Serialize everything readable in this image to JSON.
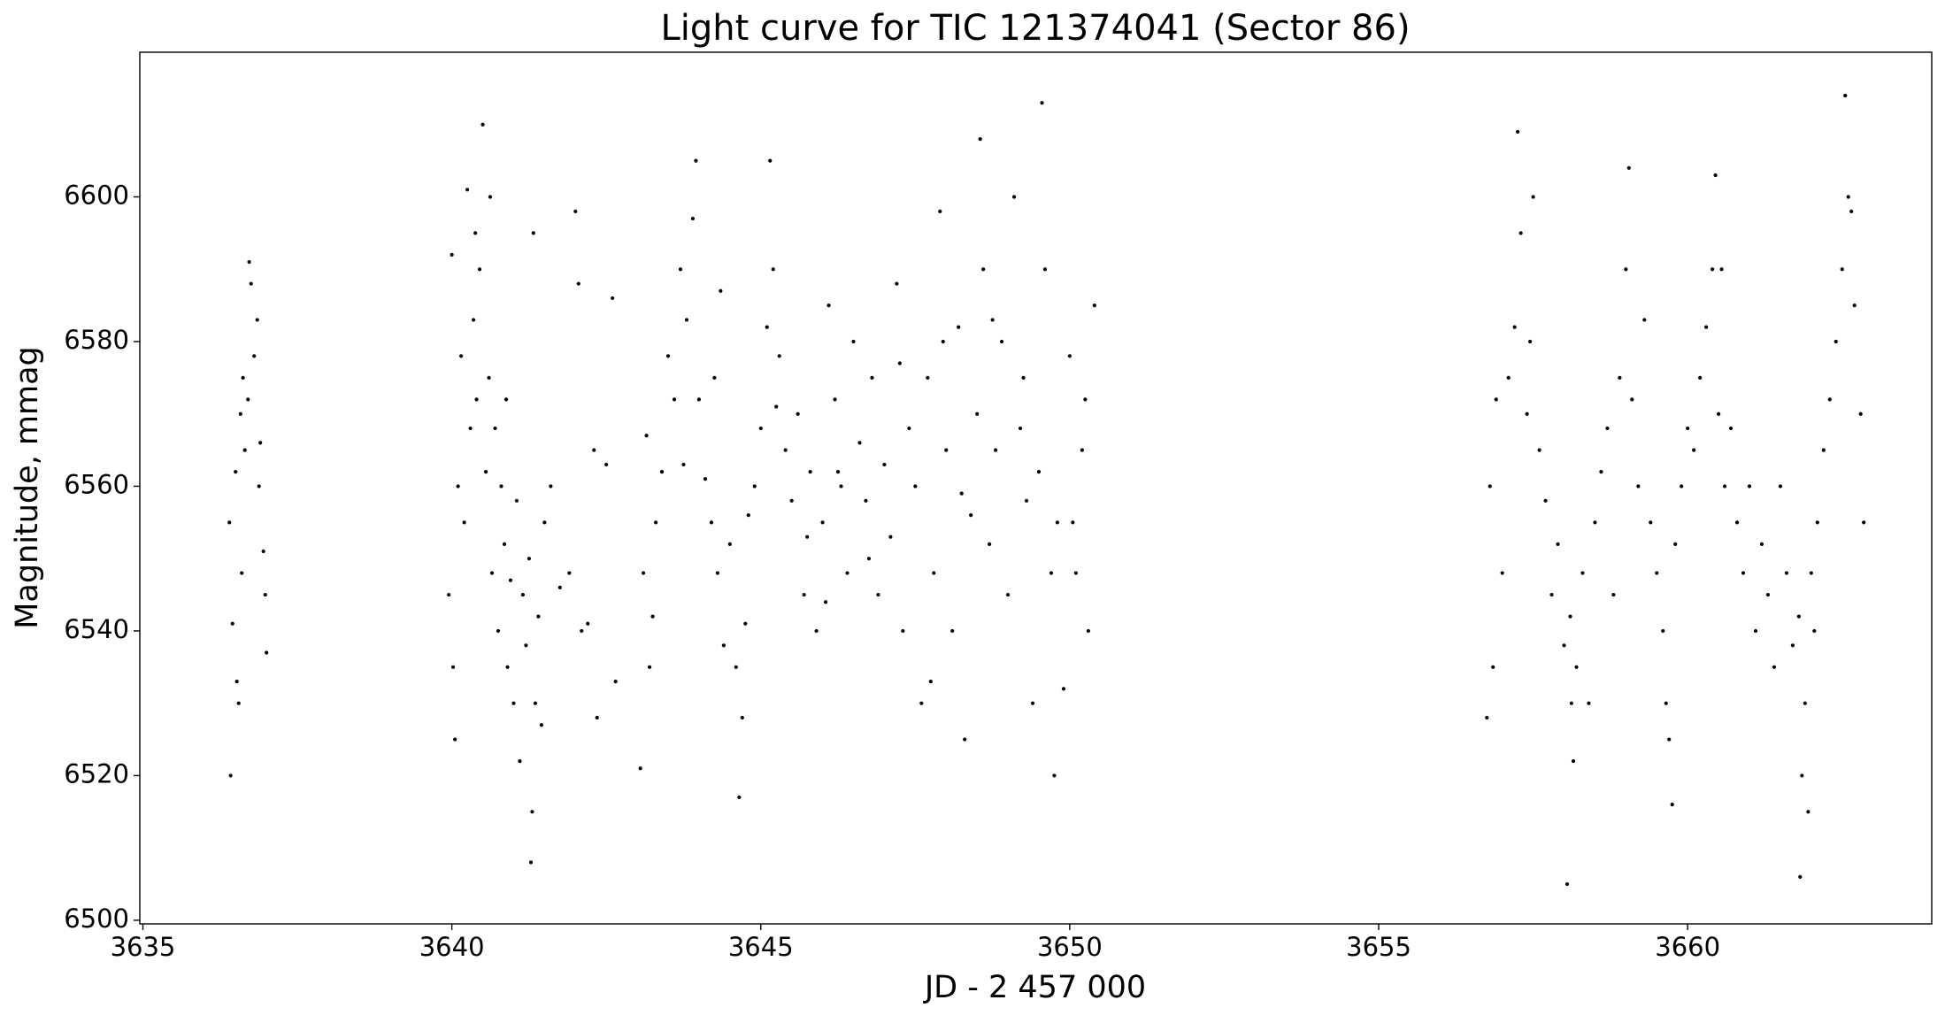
{
  "chart_data": {
    "type": "scatter",
    "title": "Light curve for TIC 121374041 (Sector 86)",
    "x_label": "JD - 2 457 000",
    "y_label": "Magnitude, mmag",
    "color": "#000000",
    "xlim": [
      3634.95,
      3663.95
    ],
    "ylim": [
      6499.5,
      6620
    ],
    "xticks": [
      3635,
      3640,
      3645,
      3650,
      3655,
      3660
    ],
    "yticks": [
      6500,
      6520,
      6540,
      6560,
      6580,
      6600
    ],
    "x": [
      3636.4,
      3636.45,
      3636.5,
      3636.55,
      3636.6,
      3636.65,
      3636.7,
      3636.75,
      3636.8,
      3636.85,
      3636.9,
      3636.95,
      3637.0,
      3636.42,
      3636.58,
      3636.72,
      3636.88,
      3636.98,
      3636.52,
      3636.62,
      3639.95,
      3640.0,
      3640.05,
      3640.1,
      3640.15,
      3640.2,
      3640.25,
      3640.3,
      3640.35,
      3640.4,
      3640.45,
      3640.5,
      3640.55,
      3640.6,
      3640.65,
      3640.7,
      3640.75,
      3640.8,
      3640.85,
      3640.9,
      3640.95,
      3641.0,
      3641.05,
      3641.1,
      3641.15,
      3641.2,
      3641.25,
      3641.3,
      3641.35,
      3641.4,
      3641.45,
      3641.5,
      3640.02,
      3640.38,
      3640.62,
      3641.28,
      3641.32,
      3640.88,
      3641.6,
      3641.75,
      3641.9,
      3642.0,
      3642.1,
      3642.2,
      3642.35,
      3642.5,
      3642.6,
      3642.65,
      3642.3,
      3642.05,
      3643.05,
      3643.1,
      3643.15,
      3643.2,
      3643.3,
      3643.4,
      3643.5,
      3643.6,
      3643.7,
      3643.8,
      3643.9,
      3644.0,
      3644.1,
      3644.2,
      3644.3,
      3644.4,
      3644.5,
      3644.6,
      3644.7,
      3644.8,
      3644.9,
      3645.0,
      3645.1,
      3645.2,
      3645.3,
      3645.4,
      3645.5,
      3645.6,
      3645.7,
      3645.8,
      3645.9,
      3646.0,
      3646.1,
      3646.2,
      3646.3,
      3646.4,
      3646.5,
      3646.6,
      3646.7,
      3646.8,
      3646.9,
      3647.0,
      3647.1,
      3647.2,
      3647.3,
      3647.4,
      3647.5,
      3647.6,
      3647.7,
      3647.8,
      3647.9,
      3648.0,
      3648.1,
      3648.2,
      3648.3,
      3648.4,
      3648.5,
      3648.6,
      3648.7,
      3648.8,
      3648.9,
      3649.0,
      3649.1,
      3649.2,
      3649.3,
      3649.4,
      3649.5,
      3649.6,
      3649.7,
      3649.8,
      3649.9,
      3650.0,
      3650.1,
      3650.2,
      3650.3,
      3650.4,
      3643.25,
      3643.75,
      3644.25,
      3644.75,
      3645.25,
      3645.75,
      3646.25,
      3646.75,
      3647.25,
      3647.75,
      3648.25,
      3648.75,
      3649.25,
      3649.75,
      3650.25,
      3643.95,
      3644.65,
      3645.15,
      3646.05,
      3647.95,
      3648.55,
      3649.55,
      3650.05,
      3644.35,
      3656.75,
      3656.8,
      3656.9,
      3657.0,
      3657.1,
      3657.2,
      3657.3,
      3657.4,
      3657.5,
      3657.6,
      3657.7,
      3657.8,
      3657.9,
      3658.0,
      3658.1,
      3658.2,
      3658.3,
      3658.4,
      3658.5,
      3658.6,
      3658.7,
      3658.8,
      3658.9,
      3659.0,
      3659.1,
      3659.2,
      3659.3,
      3659.4,
      3659.5,
      3659.6,
      3659.7,
      3659.8,
      3659.9,
      3660.0,
      3660.1,
      3660.2,
      3660.3,
      3660.4,
      3660.5,
      3660.6,
      3660.7,
      3660.8,
      3660.9,
      3661.0,
      3661.1,
      3661.2,
      3661.3,
      3661.4,
      3661.5,
      3661.6,
      3661.7,
      3661.8,
      3661.9,
      3662.0,
      3662.1,
      3662.2,
      3662.3,
      3662.4,
      3662.5,
      3662.6,
      3662.7,
      3662.8,
      3662.85,
      3657.25,
      3657.45,
      3658.05,
      3658.15,
      3659.05,
      3659.75,
      3660.45,
      3660.55,
      3661.85,
      3661.95,
      3662.55,
      3662.65,
      3658.12,
      3661.82,
      3656.85,
      3659.65,
      3662.05
    ],
    "values": [
      6555,
      6541,
      6562,
      6530,
      6548,
      6565,
      6572,
      6588,
      6578,
      6583,
      6566,
      6551,
      6537,
      6520,
      6570,
      6591,
      6560,
      6545,
      6533,
      6575,
      6545,
      6592,
      6525,
      6560,
      6578,
      6555,
      6601,
      6568,
      6583,
      6572,
      6590,
      6610,
      6562,
      6575,
      6548,
      6568,
      6540,
      6560,
      6552,
      6535,
      6547,
      6530,
      6558,
      6522,
      6545,
      6538,
      6550,
      6515,
      6530,
      6542,
      6527,
      6555,
      6535,
      6595,
      6600,
      6508,
      6595,
      6572,
      6560,
      6546,
      6548,
      6598,
      6540,
      6541,
      6528,
      6563,
      6586,
      6533,
      6565,
      6588,
      6521,
      6548,
      6567,
      6535,
      6555,
      6562,
      6578,
      6572,
      6590,
      6583,
      6597,
      6572,
      6561,
      6555,
      6548,
      6538,
      6552,
      6535,
      6528,
      6556,
      6560,
      6568,
      6582,
      6590,
      6578,
      6565,
      6558,
      6570,
      6545,
      6562,
      6540,
      6555,
      6585,
      6572,
      6560,
      6548,
      6580,
      6566,
      6558,
      6575,
      6545,
      6563,
      6553,
      6588,
      6540,
      6568,
      6560,
      6530,
      6575,
      6548,
      6598,
      6565,
      6540,
      6582,
      6525,
      6556,
      6570,
      6590,
      6552,
      6565,
      6580,
      6545,
      6600,
      6568,
      6558,
      6530,
      6562,
      6590,
      6548,
      6555,
      6532,
      6578,
      6548,
      6565,
      6540,
      6585,
      6542,
      6563,
      6575,
      6541,
      6571,
      6553,
      6562,
      6550,
      6577,
      6533,
      6559,
      6583,
      6575,
      6520,
      6572,
      6605,
      6517,
      6605,
      6544,
      6580,
      6608,
      6613,
      6555,
      6587,
      6528,
      6560,
      6572,
      6548,
      6575,
      6582,
      6595,
      6570,
      6600,
      6565,
      6558,
      6545,
      6552,
      6538,
      6542,
      6535,
      6548,
      6530,
      6555,
      6562,
      6568,
      6545,
      6575,
      6590,
      6572,
      6560,
      6583,
      6555,
      6548,
      6540,
      6525,
      6552,
      6560,
      6568,
      6565,
      6575,
      6582,
      6590,
      6570,
      6560,
      6568,
      6555,
      6548,
      6560,
      6540,
      6552,
      6545,
      6535,
      6560,
      6548,
      6538,
      6542,
      6530,
      6548,
      6555,
      6565,
      6572,
      6580,
      6590,
      6600,
      6585,
      6570,
      6555,
      6609,
      6580,
      6505,
      6522,
      6604,
      6516,
      6603,
      6590,
      6520,
      6515,
      6614,
      6598,
      6530,
      6506,
      6535,
      6530,
      6540
    ]
  }
}
